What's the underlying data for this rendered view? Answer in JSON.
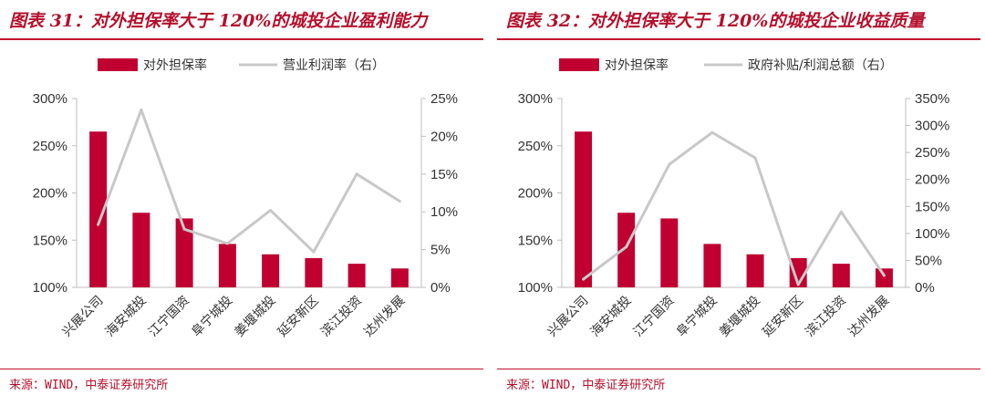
{
  "source_text": "来源：WIND，中泰证券研究所",
  "chart_data": [
    {
      "type": "bar",
      "title": "图表 31：对外担保率大于 120%的城投企业盈利能力",
      "categories": [
        "兴展公司",
        "海安城投",
        "江宁国资",
        "阜宁城投",
        "姜堰城投",
        "延安新区",
        "滨江投资",
        "达州发展"
      ],
      "series": [
        {
          "name": "对外担保率",
          "type": "bar",
          "axis": "left",
          "color": "#c00030",
          "values": [
            265,
            179,
            173,
            146,
            135,
            131,
            125,
            120
          ]
        },
        {
          "name": "营业利润率（右）",
          "type": "line",
          "axis": "right",
          "color": "#c8c8c8",
          "values": [
            8.3,
            23.5,
            7.7,
            5.8,
            10.2,
            4.7,
            15.0,
            11.4
          ]
        }
      ],
      "y_left": {
        "min": 100,
        "max": 300,
        "ticks": [
          "100%",
          "150%",
          "200%",
          "250%",
          "300%"
        ]
      },
      "y_right": {
        "min": 0,
        "max": 25,
        "ticks": [
          "0%",
          "5%",
          "10%",
          "15%",
          "20%",
          "25%"
        ]
      }
    },
    {
      "type": "bar",
      "title": "图表 32：对外担保率大于 120%的城投企业收益质量",
      "categories": [
        "兴展公司",
        "海安城投",
        "江宁国资",
        "阜宁城投",
        "姜堰城投",
        "延安新区",
        "滨江投资",
        "达州发展"
      ],
      "series": [
        {
          "name": "对外担保率",
          "type": "bar",
          "axis": "left",
          "color": "#c00030",
          "values": [
            265,
            179,
            173,
            146,
            135,
            131,
            125,
            120
          ]
        },
        {
          "name": "政府补贴/利润总额（右）",
          "type": "line",
          "axis": "right",
          "color": "#c8c8c8",
          "values": [
            15,
            75,
            228,
            287,
            240,
            5,
            140,
            22
          ]
        }
      ],
      "y_left": {
        "min": 100,
        "max": 300,
        "ticks": [
          "100%",
          "150%",
          "200%",
          "250%",
          "300%"
        ]
      },
      "y_right": {
        "min": 0,
        "max": 350,
        "ticks": [
          "0%",
          "50%",
          "100%",
          "150%",
          "200%",
          "250%",
          "300%",
          "350%"
        ]
      }
    }
  ]
}
